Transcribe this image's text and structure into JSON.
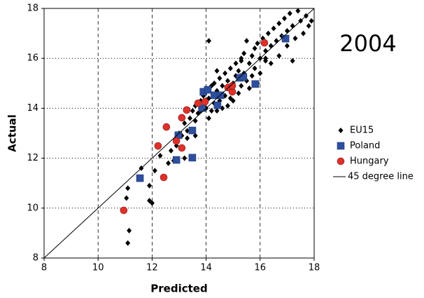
{
  "chart_data": {
    "type": "scatter",
    "annotation": "2004",
    "xlabel": "Predicted",
    "ylabel": "Actual",
    "xlim": [
      8,
      18
    ],
    "ylim": [
      8,
      18
    ],
    "xticks": [
      8,
      10,
      12,
      14,
      16,
      18
    ],
    "yticks": [
      8,
      10,
      12,
      14,
      16,
      18
    ],
    "grid": true,
    "legend": "right",
    "series": [
      {
        "name": "EU15",
        "color": "#000000",
        "marker": "diamond",
        "x": [
          11.1,
          11.15,
          11.05,
          11.1,
          11.6,
          11.9,
          12,
          11.9,
          12.1,
          12.3,
          12.6,
          12.8,
          12.7,
          12.9,
          13.0,
          13.1,
          13.2,
          13.3,
          13.3,
          13.4,
          13.5,
          13.6,
          13.6,
          13.7,
          13.8,
          13.8,
          13.9,
          14.0,
          14.0,
          14.1,
          14.1,
          14.2,
          14.2,
          14.3,
          14.3,
          14.4,
          14.4,
          14.5,
          14.5,
          14.6,
          14.6,
          14.7,
          14.7,
          14.8,
          14.8,
          14.9,
          14.9,
          15.0,
          15.0,
          15.1,
          15.1,
          15.2,
          15.2,
          15.3,
          15.3,
          15.4,
          15.4,
          15.5,
          15.5,
          15.6,
          15.6,
          15.7,
          15.7,
          15.8,
          15.8,
          15.9,
          15.9,
          16.0,
          16.0,
          16.1,
          16.2,
          16.2,
          16.3,
          16.4,
          16.4,
          16.5,
          16.6,
          16.7,
          16.7,
          16.8,
          16.9,
          17.0,
          17.0,
          17.1,
          17.2,
          17.3,
          17.4,
          17.5,
          17.6,
          17.7,
          17.8,
          17.9,
          14.1,
          13.2,
          12.9,
          13.6,
          15.3,
          16.2,
          17.2,
          14.4
        ],
        "values": [
          8.6,
          9.1,
          10.4,
          10.8,
          11.6,
          10.3,
          10.2,
          10.9,
          11.5,
          12.1,
          11.8,
          11.9,
          12.3,
          12.5,
          13.0,
          12.9,
          13.4,
          13.1,
          12.8,
          13.6,
          13.9,
          13.5,
          14.1,
          13.8,
          14.3,
          13.9,
          14.5,
          14.0,
          14.8,
          13.6,
          14.4,
          14.9,
          13.9,
          14.2,
          15.0,
          13.9,
          14.7,
          15.2,
          14.3,
          14.0,
          14.9,
          15.4,
          14.5,
          14.1,
          15.1,
          15.6,
          14.4,
          15.0,
          14.3,
          15.8,
          15.3,
          14.6,
          15.5,
          16.0,
          14.9,
          15.4,
          16.2,
          15.1,
          16.7,
          15.8,
          14.8,
          16.1,
          15.3,
          16.4,
          15.6,
          15.0,
          16.6,
          16.0,
          15.4,
          16.8,
          15.9,
          16.3,
          17.0,
          16.5,
          15.8,
          17.2,
          16.7,
          17.4,
          16.1,
          16.9,
          17.6,
          17.1,
          16.5,
          17.8,
          17.3,
          16.8,
          17.9,
          17.5,
          17.0,
          17.7,
          17.3,
          17.5,
          16.7,
          12.0,
          11.9,
          12.9,
          15.9,
          16.0,
          15.9,
          15.5
        ]
      },
      {
        "name": "Poland",
        "color": "#2e4f9e",
        "marker": "square",
        "x": [
          11.55,
          12.9,
          13.49,
          12.97,
          13.49,
          13.85,
          13.9,
          14.06,
          14.3,
          14.53,
          14.42,
          15.25,
          15.38,
          15.82,
          16.94
        ],
        "values": [
          11.2,
          11.93,
          12.02,
          12.92,
          13.11,
          14.01,
          14.66,
          14.74,
          14.52,
          14.52,
          14.12,
          15.22,
          15.25,
          14.97,
          16.79
        ]
      },
      {
        "name": "Hungary",
        "color": "#e0302a",
        "marker": "circle",
        "x": [
          10.95,
          12.22,
          12.43,
          12.53,
          12.9,
          13.1,
          13.1,
          13.28,
          13.7,
          13.96,
          14.81,
          14.97,
          14.97,
          16.16
        ],
        "values": [
          9.91,
          12.49,
          11.23,
          13.25,
          12.69,
          12.41,
          13.62,
          13.93,
          14.2,
          14.26,
          14.83,
          14.66,
          14.9,
          16.62
        ]
      },
      {
        "name": "45 degree line",
        "color": "#000000",
        "marker": "line",
        "x": [
          8,
          18
        ],
        "values": [
          8,
          18
        ]
      }
    ]
  }
}
